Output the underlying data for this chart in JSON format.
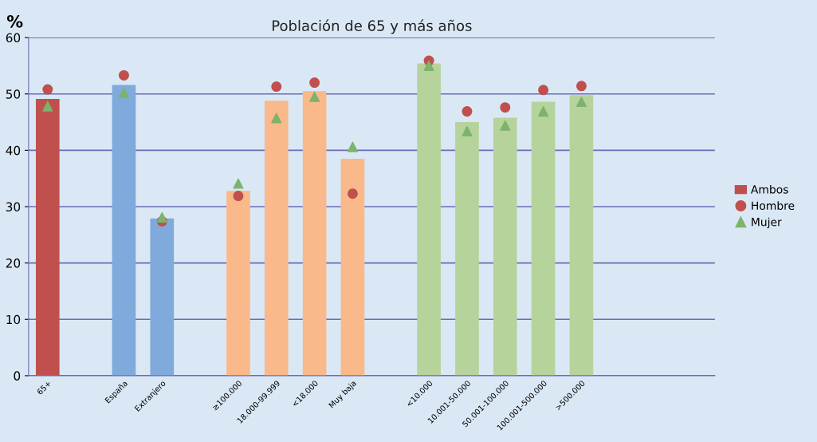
{
  "chart_data": {
    "type": "bar",
    "title": "Población de 65 y más años",
    "ylabel": "%",
    "categories": [
      "65+",
      null,
      "España",
      "Extranjero",
      null,
      "≥100.000",
      "18.000-99.999",
      "<18.000",
      "Muy baja",
      null,
      "<10.000",
      "10.001-50.000",
      "50.001-100.000",
      "100.001-500.000",
      ">500.000",
      null,
      null,
      null
    ],
    "series": [
      {
        "name": "Ambos",
        "color": "#c0504d",
        "colors": [
          "#c0504d",
          null,
          "#7faadb",
          "#7faadb",
          null,
          "#f9b98a",
          "#f9b98a",
          "#f9b98a",
          "#f9b98a",
          null,
          "#b6d39c",
          "#b6d39c",
          "#b6d39c",
          "#b6d39c",
          "#b6d39c",
          null,
          null,
          null
        ],
        "values": [
          49.1,
          null,
          51.6,
          27.9,
          null,
          32.8,
          48.8,
          50.5,
          38.5,
          null,
          55.4,
          45.0,
          45.8,
          48.6,
          49.8,
          null,
          null,
          null
        ]
      },
      {
        "name": "Hombre",
        "type": "scatter",
        "marker": "circle",
        "color": "#c0504d",
        "values": [
          50.8,
          null,
          53.3,
          27.4,
          null,
          31.9,
          51.3,
          52.0,
          32.3,
          null,
          55.9,
          46.9,
          47.6,
          50.7,
          51.4,
          null,
          null,
          null
        ]
      },
      {
        "name": "Mujer",
        "type": "scatter",
        "marker": "triangle",
        "color": "#7db36a",
        "values": [
          47.8,
          null,
          50.2,
          28.1,
          null,
          34.1,
          45.7,
          49.5,
          40.6,
          null,
          55.0,
          43.4,
          44.4,
          46.9,
          48.6,
          null,
          null,
          null
        ]
      }
    ],
    "ylim": [
      0,
      60
    ],
    "yticks": [
      0,
      10,
      20,
      30,
      40,
      50,
      60
    ],
    "grid": "y",
    "legend": "right"
  }
}
